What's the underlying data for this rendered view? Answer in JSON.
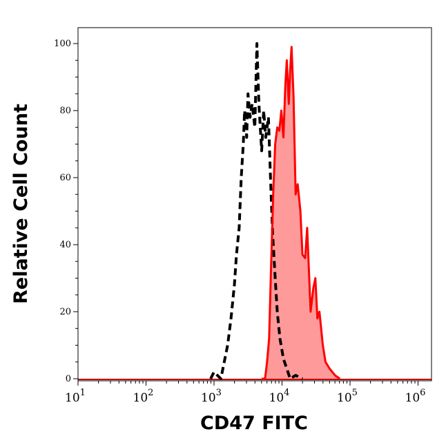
{
  "chart_data": {
    "type": "area",
    "xlabel": "CD47 FITC",
    "ylabel": "Relative Cell Count",
    "xscale": "log",
    "xlim": [
      10,
      1600000
    ],
    "ylim": [
      0,
      105
    ],
    "x_ticks": [
      {
        "base": "10",
        "exp": "1",
        "value": 10
      },
      {
        "base": "10",
        "exp": "2",
        "value": 100
      },
      {
        "base": "10",
        "exp": "3",
        "value": 1000
      },
      {
        "base": "10",
        "exp": "4",
        "value": 10000
      },
      {
        "base": "10",
        "exp": "5",
        "value": 100000
      },
      {
        "base": "10",
        "exp": "6",
        "value": 1000000
      }
    ],
    "y_ticks": [
      "0",
      "20",
      "40",
      "60",
      "80",
      "100"
    ],
    "grid": false,
    "series": [
      {
        "style": "dashed",
        "color": "#000000",
        "fill": "none",
        "x": [
          891,
          1000,
          1122,
          1259,
          1413,
          1585,
          1778,
          1995,
          2138,
          2344,
          2512,
          2692,
          2818,
          3020,
          3162,
          3388,
          3631,
          3981,
          4266,
          4571,
          5012,
          5370,
          5754,
          6310,
          6761,
          7244,
          7943,
          8511,
          9333,
          10471,
          11749,
          13183,
          15849,
          19953
        ],
        "y": [
          0,
          2,
          1,
          0,
          5,
          10,
          18,
          28,
          37,
          45,
          60,
          70,
          80,
          72,
          85,
          78,
          82,
          75,
          100,
          82,
          68,
          80,
          72,
          78,
          60,
          44,
          30,
          20,
          12,
          6,
          3,
          0,
          1,
          0
        ]
      },
      {
        "style": "solid",
        "color": "#ff0000",
        "fill": "#ff9a9a",
        "x": [
          5012,
          5623,
          6026,
          6457,
          6918,
          7413,
          7943,
          8511,
          9120,
          9772,
          10471,
          11220,
          11749,
          12589,
          13183,
          13804,
          14791,
          15849,
          16982,
          18621,
          19953,
          21878,
          23442,
          25119,
          26303,
          28840,
          30903,
          33113,
          35481,
          39811,
          43652,
          50119,
          60256,
          70795
        ],
        "y": [
          0,
          0,
          5,
          12,
          34,
          55,
          70,
          75,
          74,
          80,
          72,
          88,
          95,
          82,
          92,
          99,
          84,
          55,
          58,
          50,
          37,
          36,
          45,
          30,
          20,
          27,
          30,
          18,
          20,
          10,
          5,
          3,
          1,
          0
        ]
      }
    ]
  }
}
